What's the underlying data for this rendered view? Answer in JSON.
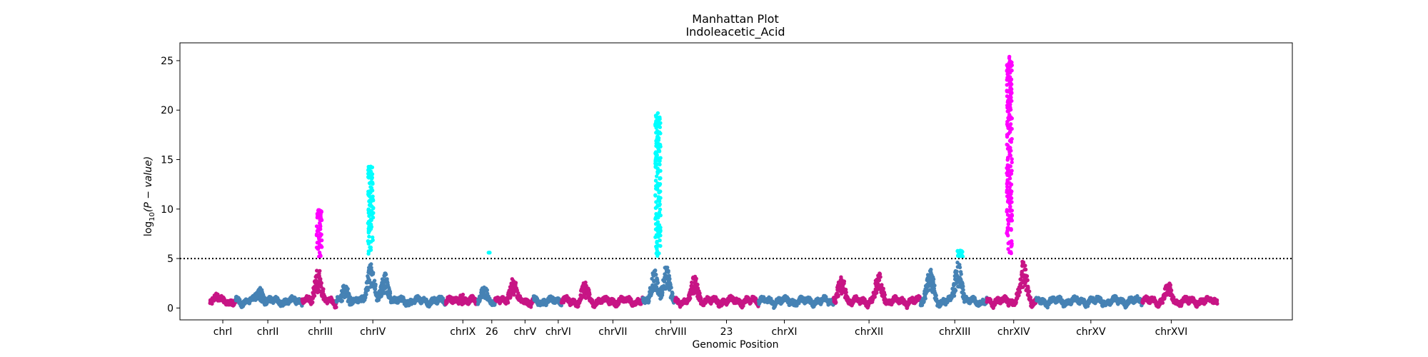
{
  "chart_data": {
    "type": "scatter",
    "title": "Manhattan Plot",
    "subtitle": "Indoleacetic_Acid",
    "xlabel": "Genomic Position",
    "ylabel": "log10(P − value)",
    "ylabel_base": "log",
    "ylabel_sub": "10",
    "ylabel_paren": "(P − value)",
    "ylim": [
      -1.2,
      26.8
    ],
    "yticks": [
      0,
      5,
      10,
      15,
      20,
      25
    ],
    "xlim": [
      -2.8,
      101
    ],
    "threshold": 5,
    "grid": false,
    "legend": "none",
    "colors": {
      "blue": "#4682b4",
      "magenta_dark": "#c71585",
      "cyan": "#00ffff",
      "magenta": "#ff00ff",
      "threshold_line": "#000000"
    },
    "chromosomes": [
      {
        "label": "chrI",
        "start": 0.0,
        "end": 2.4,
        "tick": 1.2,
        "color": "magenta_dark"
      },
      {
        "label": "chrII",
        "start": 2.4,
        "end": 8.6,
        "tick": 5.4,
        "color": "blue"
      },
      {
        "label": "chrIII",
        "start": 8.6,
        "end": 11.8,
        "tick": 10.3,
        "color": "magenta_dark"
      },
      {
        "label": "chrIV",
        "start": 11.8,
        "end": 22.0,
        "tick": 15.2,
        "color": "blue"
      },
      {
        "label": "chrIX",
        "start": 22.0,
        "end": 25.0,
        "tick": 23.6,
        "color": "magenta_dark"
      },
      {
        "label": "26",
        "start": 25.0,
        "end": 26.6,
        "tick": 26.3,
        "color": "blue"
      },
      {
        "label": "chrV",
        "start": 26.6,
        "end": 30.2,
        "tick": 29.4,
        "color": "magenta_dark"
      },
      {
        "label": "chrVI",
        "start": 30.2,
        "end": 32.8,
        "tick": 32.5,
        "color": "blue"
      },
      {
        "label": "chrVII",
        "start": 32.8,
        "end": 40.4,
        "tick": 37.6,
        "color": "magenta_dark"
      },
      {
        "label": "chrVIII",
        "start": 40.4,
        "end": 43.4,
        "tick": 43.0,
        "color": "blue"
      },
      {
        "label": "23",
        "start": 43.4,
        "end": 51.2,
        "tick": 48.2,
        "color": "magenta_dark"
      },
      {
        "label": "chrXI",
        "start": 51.2,
        "end": 58.2,
        "tick": 53.6,
        "color": "blue"
      },
      {
        "label": "chrXII",
        "start": 58.2,
        "end": 66.3,
        "tick": 61.5,
        "color": "magenta_dark"
      },
      {
        "label": "chrXIII",
        "start": 66.3,
        "end": 72.5,
        "tick": 69.5,
        "color": "blue"
      },
      {
        "label": "chrXIV",
        "start": 72.5,
        "end": 77.1,
        "tick": 75.0,
        "color": "magenta_dark"
      },
      {
        "label": "chrXV",
        "start": 77.1,
        "end": 87.0,
        "tick": 82.2,
        "color": "blue"
      },
      {
        "label": "chrXVI",
        "start": 87.0,
        "end": 94.0,
        "tick": 89.7,
        "color": "magenta_dark"
      }
    ],
    "significant_peaks": [
      {
        "chromosome": "chrIII",
        "x": 10.2,
        "max_y": 9.9,
        "min_y": 5.1,
        "color": "magenta"
      },
      {
        "chromosome": "chrIV",
        "x": 15.0,
        "max_y": 14.3,
        "min_y": 5.1,
        "color": "cyan"
      },
      {
        "chromosome": "26",
        "x": 26.0,
        "max_y": 5.6,
        "min_y": 5.6,
        "color": "cyan"
      },
      {
        "chromosome": "chrVIII",
        "x": 41.8,
        "max_y": 19.7,
        "min_y": 5.1,
        "color": "cyan"
      },
      {
        "chromosome": "chrXIII",
        "x": 70.0,
        "max_y": 5.8,
        "min_y": 5.1,
        "color": "cyan"
      },
      {
        "chromosome": "chrXIV",
        "x": 74.6,
        "max_y": 25.4,
        "min_y": 5.1,
        "color": "magenta"
      }
    ],
    "background_signal": [
      {
        "x": 0.5,
        "y": 1.5
      },
      {
        "x": 4.6,
        "y": 2.2
      },
      {
        "x": 10.1,
        "y": 3.9
      },
      {
        "x": 12.6,
        "y": 2.3
      },
      {
        "x": 15.0,
        "y": 4.5
      },
      {
        "x": 16.3,
        "y": 3.5
      },
      {
        "x": 23.5,
        "y": 1.2
      },
      {
        "x": 25.6,
        "y": 2.2
      },
      {
        "x": 28.3,
        "y": 3.1
      },
      {
        "x": 35.0,
        "y": 2.5
      },
      {
        "x": 41.5,
        "y": 4.0
      },
      {
        "x": 42.6,
        "y": 4.3
      },
      {
        "x": 45.2,
        "y": 3.2
      },
      {
        "x": 58.9,
        "y": 3.3
      },
      {
        "x": 62.4,
        "y": 3.5
      },
      {
        "x": 67.2,
        "y": 4.2
      },
      {
        "x": 69.8,
        "y": 4.8
      },
      {
        "x": 75.9,
        "y": 4.7
      },
      {
        "x": 89.4,
        "y": 2.6
      }
    ]
  }
}
